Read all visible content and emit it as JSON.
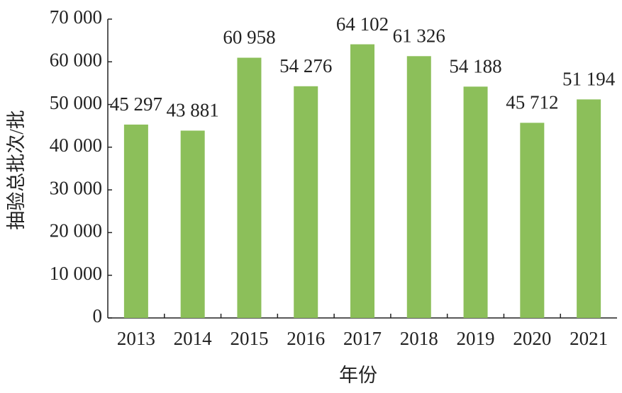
{
  "chart_data": {
    "type": "bar",
    "x_label": "年份",
    "y_label": "抽验总批次/批",
    "categories": [
      "2013",
      "2014",
      "2015",
      "2016",
      "2017",
      "2018",
      "2019",
      "2020",
      "2021"
    ],
    "values": [
      45297,
      43881,
      60958,
      54276,
      64102,
      61326,
      54188,
      45712,
      51194
    ],
    "value_labels": [
      "45 297",
      "43 881",
      "60 958",
      "54 276",
      "64 102",
      "61 326",
      "54 188",
      "45 712",
      "51 194"
    ],
    "color": "#8cbf5a",
    "ylim": [
      0,
      70000
    ],
    "yticks": [
      0,
      {
        "value": 10000,
        "label": "10 000"
      },
      {
        "value": 20000,
        "label": "20 000"
      },
      {
        "value": 30000,
        "label": "30 000"
      },
      {
        "value": 40000,
        "label": "40 000"
      },
      {
        "value": 50000,
        "label": "50 000"
      },
      {
        "value": 60000,
        "label": "60 000"
      },
      {
        "value": 70000,
        "label": "70 000"
      }
    ],
    "grid": false
  }
}
